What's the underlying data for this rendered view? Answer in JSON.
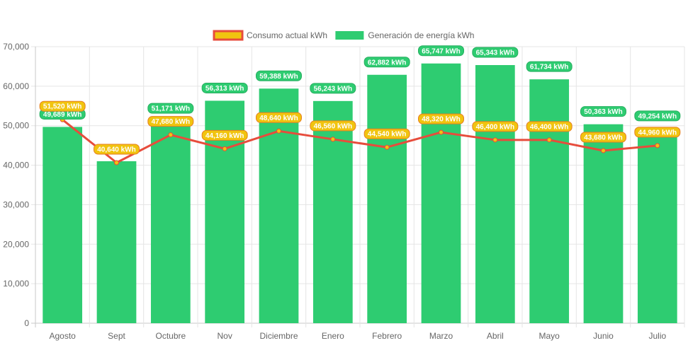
{
  "chart_data": {
    "type": "bar",
    "categories": [
      "Agosto",
      "Sept",
      "Octubre",
      "Nov",
      "Diciembre",
      "Enero",
      "Febrero",
      "Marzo",
      "Abril",
      "Mayo",
      "Junio",
      "Julio"
    ],
    "series": [
      {
        "name": "Generación de energía kWh",
        "type": "bar",
        "color": "#2ecc71",
        "values": [
          49689,
          41000,
          51171,
          56313,
          59388,
          56243,
          62882,
          65747,
          65343,
          61734,
          50363,
          49254
        ],
        "labels": [
          "49,689 kWh",
          "",
          "51,171 kWh",
          "56,313 kWh",
          "59,388 kWh",
          "56,243 kWh",
          "62,882 kWh",
          "65,747 kWh",
          "65,343 kWh",
          "61,734 kWh",
          "50,363 kWh",
          "49,254 kWh"
        ]
      },
      {
        "name": "Consumo actual kWh",
        "type": "line",
        "color": "#e74c3c",
        "point_color": "#f1c40f",
        "values": [
          51520,
          40640,
          47680,
          44160,
          48640,
          46560,
          44540,
          48320,
          46400,
          46400,
          43680,
          44960
        ],
        "labels": [
          "51,520 kWh",
          "40,640 kWh",
          "47,680 kWh",
          "44,160 kWh",
          "48,640 kWh",
          "46,560 kWh",
          "44,540 kWh",
          "48,320 kWh",
          "46,400 kWh",
          "46,400 kWh",
          "43,680 kWh",
          "44,960 kWh"
        ]
      }
    ],
    "ylim": [
      0,
      70000
    ],
    "yticks": [
      0,
      10000,
      20000,
      30000,
      40000,
      50000,
      60000,
      70000
    ],
    "ytick_labels": [
      "0",
      "10,000",
      "20,000",
      "30,000",
      "40,000",
      "50,000",
      "60,000",
      "70,000"
    ],
    "grid": true,
    "legend_position": "top-center",
    "title": "",
    "xlabel": "",
    "ylabel": ""
  }
}
